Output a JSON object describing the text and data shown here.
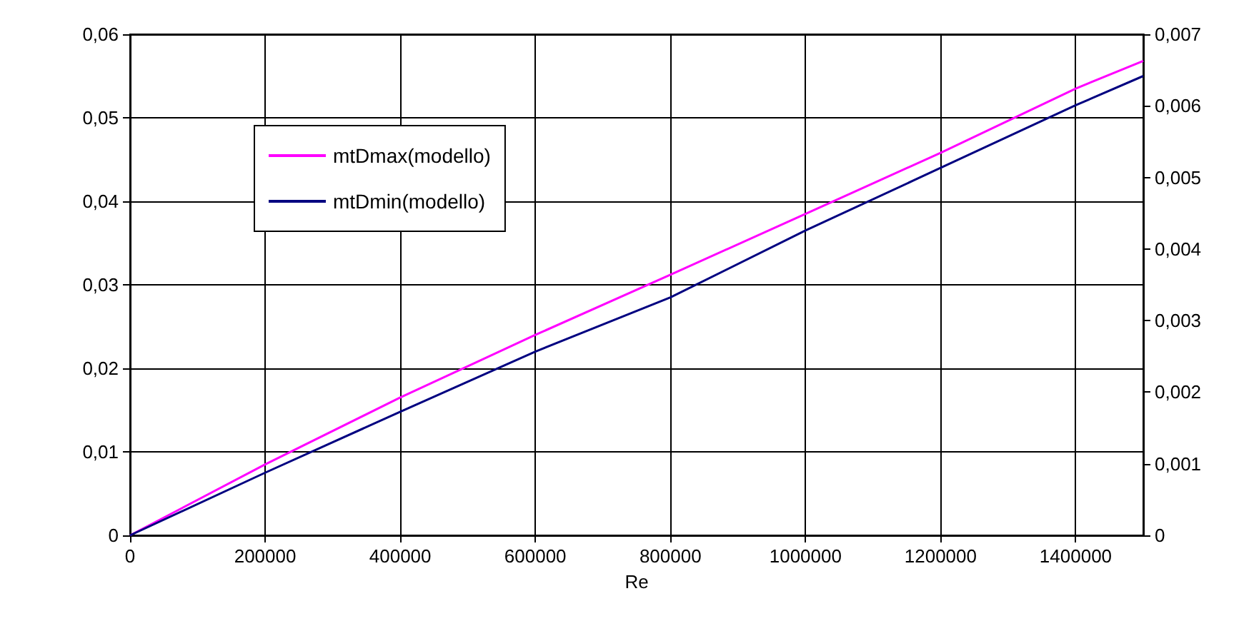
{
  "chart_data": {
    "type": "line",
    "xlabel": "Re",
    "x": [
      0,
      200000,
      400000,
      600000,
      800000,
      1000000,
      1200000,
      1400000,
      1500000
    ],
    "series": [
      {
        "name": "mtDmax(modello)",
        "color": "#ff00ff",
        "values": [
          0,
          0.0085,
          0.0165,
          0.024,
          0.0312,
          0.0385,
          0.0458,
          0.0535,
          0.0568
        ]
      },
      {
        "name": "mtDmin(modello)",
        "color": "#000080",
        "values": [
          0,
          0.0075,
          0.0148,
          0.022,
          0.0285,
          0.0365,
          0.044,
          0.0515,
          0.055
        ]
      }
    ],
    "xlim": [
      0,
      1500000
    ],
    "xticks": [
      0,
      200000,
      400000,
      600000,
      800000,
      1000000,
      1200000,
      1400000
    ],
    "ylim": [
      0,
      0.06
    ],
    "yticks": [
      {
        "value": 0,
        "label": "0"
      },
      {
        "value": 0.01,
        "label": "0,01"
      },
      {
        "value": 0.02,
        "label": "0,02"
      },
      {
        "value": 0.03,
        "label": "0,03"
      },
      {
        "value": 0.04,
        "label": "0,04"
      },
      {
        "value": 0.05,
        "label": "0,05"
      },
      {
        "value": 0.06,
        "label": "0,06"
      }
    ],
    "y2lim": [
      0,
      0.007
    ],
    "y2ticks": [
      {
        "value": 0,
        "label": "0"
      },
      {
        "value": 0.001,
        "label": "0,001"
      },
      {
        "value": 0.002,
        "label": "0,002"
      },
      {
        "value": 0.003,
        "label": "0,003"
      },
      {
        "value": 0.004,
        "label": "0,004"
      },
      {
        "value": 0.005,
        "label": "0,005"
      },
      {
        "value": 0.006,
        "label": "0,006"
      },
      {
        "value": 0.007,
        "label": "0,007"
      }
    ],
    "grid": true,
    "legend": "top left",
    "marker": "none",
    "line_style": "solid"
  }
}
